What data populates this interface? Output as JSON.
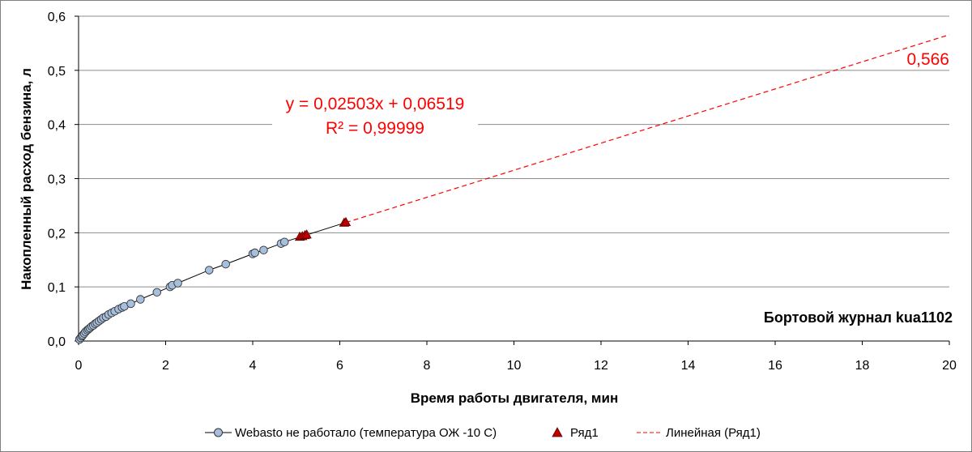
{
  "chart_data": {
    "type": "scatter",
    "xlabel": "Время работы двигателя, мин",
    "ylabel": "Накопленный  расход бензина, л",
    "xlim": [
      0,
      20
    ],
    "ylim": [
      0,
      0.6
    ],
    "x_ticks": [
      "0",
      "2",
      "4",
      "6",
      "8",
      "10",
      "12",
      "14",
      "16",
      "18",
      "20"
    ],
    "y_ticks": [
      "0,0",
      "0,1",
      "0,2",
      "0,3",
      "0,4",
      "0,5",
      "0,6"
    ],
    "grid": "horizontal",
    "legend_position": "bottom",
    "annotation": "Бортовой журнал kua1102",
    "series": [
      {
        "name": "Webasto не работало (температура ОЖ -10 С)",
        "marker": "circle",
        "color": "#a6bfdd",
        "x": [
          0.02,
          0.05,
          0.08,
          0.1,
          0.13,
          0.16,
          0.2,
          0.23,
          0.26,
          0.3,
          0.34,
          0.38,
          0.42,
          0.47,
          0.52,
          0.57,
          0.63,
          0.69,
          0.76,
          0.83,
          0.92,
          1.0,
          1.05,
          1.2,
          1.42,
          1.8,
          2.1,
          2.15,
          2.28,
          3.0,
          3.38,
          4.0,
          4.05,
          4.25,
          4.65,
          4.73
        ],
        "y": [
          0.003,
          0.006,
          0.009,
          0.011,
          0.014,
          0.017,
          0.02,
          0.022,
          0.024,
          0.027,
          0.029,
          0.032,
          0.034,
          0.037,
          0.04,
          0.043,
          0.045,
          0.049,
          0.052,
          0.055,
          0.059,
          0.062,
          0.064,
          0.069,
          0.077,
          0.09,
          0.1,
          0.103,
          0.107,
          0.131,
          0.142,
          0.161,
          0.163,
          0.168,
          0.18,
          0.183
        ]
      },
      {
        "name": "Ряд1",
        "marker": "triangle",
        "color": "#c00000",
        "x": [
          5.08,
          5.14,
          5.2,
          5.24,
          6.1,
          6.14
        ],
        "y": [
          0.192,
          0.193,
          0.195,
          0.196,
          0.218,
          0.219
        ]
      },
      {
        "name": "Линейная (Ряд1)",
        "type": "trendline",
        "color": "#ff0000",
        "slope": 0.02503,
        "intercept": 0.06519,
        "x_range": [
          6.14,
          20
        ]
      }
    ],
    "equation": "y = 0,02503x + 0,06519",
    "r_squared": "R² = 0,99999",
    "end_value_label": "0,566",
    "colors": {
      "accent_red": "#ff0000",
      "marker_red": "#c00000",
      "marker_blue": "#a6bfdd",
      "grid": "#8c8c8c"
    }
  }
}
